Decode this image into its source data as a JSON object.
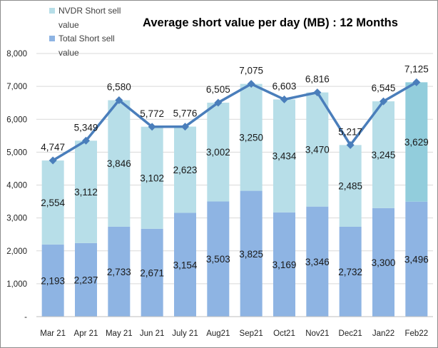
{
  "chart_data": {
    "type": "bar",
    "stacked": true,
    "title": "Average short value per day (MB) : 12 Months",
    "xlabel": "",
    "ylabel": "",
    "ylim": [
      0,
      8000
    ],
    "ytick_values": [
      0,
      1000,
      2000,
      3000,
      4000,
      5000,
      6000,
      7000,
      8000
    ],
    "ytick_labels": [
      "-",
      "1,000",
      "2,000",
      "3,000",
      "4,000",
      "5,000",
      "6,000",
      "7,000",
      "8,000"
    ],
    "grid": true,
    "legend_position": "top-left",
    "categories": [
      "Mar 21",
      "Apr 21",
      "May 21",
      "Jun 21",
      "July 21",
      "Aug21",
      "Sep21",
      "Oct21",
      "Nov21",
      "Dec21",
      "Jan22",
      "Feb22"
    ],
    "series": [
      {
        "name": "Total Short sell value",
        "type": "bar",
        "color": "#8EB4E3",
        "values": [
          2193,
          2237,
          2733,
          2671,
          3154,
          3503,
          3825,
          3169,
          3346,
          2732,
          3300,
          3496
        ],
        "labels": [
          "2,193",
          "2,237",
          "2,733",
          "2,671",
          "3,154",
          "3,503",
          "3,825",
          "3,169",
          "3,346",
          "2,732",
          "3,300",
          "3,496"
        ]
      },
      {
        "name": "NVDR Short sell value",
        "type": "bar",
        "color": "#B7DEE8",
        "highlight_color": "#92CDDC",
        "values": [
          2554,
          3112,
          3846,
          3102,
          2623,
          3002,
          3250,
          3434,
          3470,
          2485,
          3245,
          3629
        ],
        "labels": [
          "2,554",
          "3,112",
          "3,846",
          "3,102",
          "2,623",
          "3,002",
          "3,250",
          "3,434",
          "3,470",
          "2,485",
          "3,245",
          "3,629"
        ]
      },
      {
        "name": "Total",
        "type": "line",
        "color": "#4A7EBB",
        "values": [
          4747,
          5349,
          6580,
          5772,
          5776,
          6505,
          7075,
          6603,
          6816,
          5217,
          6545,
          7125
        ],
        "labels": [
          "4,747",
          "5,349",
          "6,580",
          "5,772",
          "5,776",
          "6,505",
          "7,075",
          "6,603",
          "6,816",
          "5,217",
          "6,545",
          "7,125"
        ]
      }
    ],
    "legend": [
      {
        "label": "NVDR Short sell value",
        "color": "#B7DEE8"
      },
      {
        "label": "Total Short sell value",
        "color": "#8EB4E3"
      }
    ]
  }
}
